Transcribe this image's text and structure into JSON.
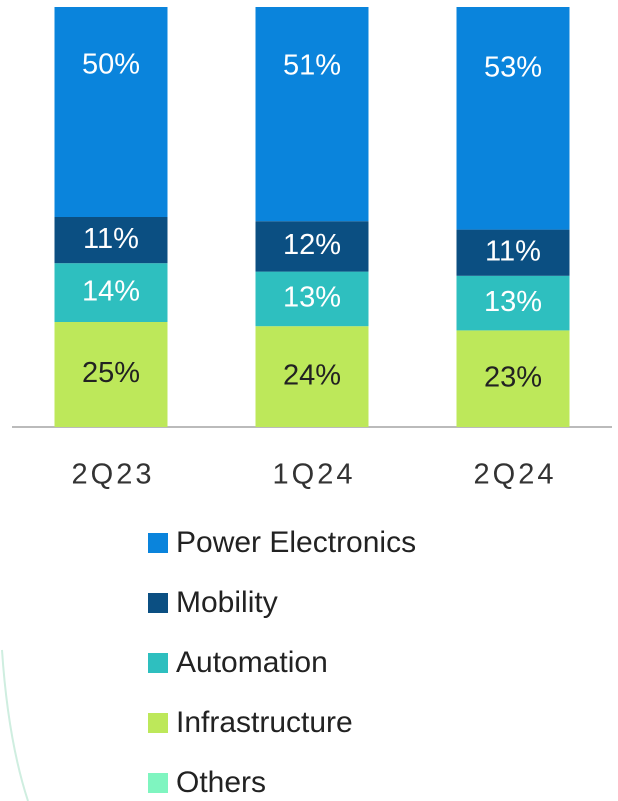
{
  "chart_data": {
    "type": "stacked_bar",
    "categories": [
      "2Q23",
      "1Q24",
      "2Q24"
    ],
    "ylim": [
      0,
      100
    ],
    "series": [
      {
        "name": "Infrastructure",
        "color": "#bde85a",
        "values": [
          25,
          24,
          23
        ],
        "value_labels": [
          "25%",
          "24%",
          "23%"
        ]
      },
      {
        "name": "Automation",
        "color": "#2ebfbf",
        "values": [
          14,
          13,
          13
        ],
        "value_labels": [
          "14%",
          "13%",
          "13%"
        ]
      },
      {
        "name": "Mobility",
        "color": "#0b4f82",
        "values": [
          11,
          12,
          11
        ],
        "value_labels": [
          "11%",
          "12%",
          "11%"
        ]
      },
      {
        "name": "Power Electronics",
        "color": "#0a84dc",
        "values": [
          50,
          51,
          53
        ],
        "value_labels": [
          "50%",
          "51%",
          "53%"
        ]
      },
      {
        "name": "Others",
        "color": "#7ff5c0",
        "values": [
          0,
          0,
          0
        ]
      }
    ],
    "legend_order": [
      3,
      2,
      1,
      0,
      4
    ]
  }
}
